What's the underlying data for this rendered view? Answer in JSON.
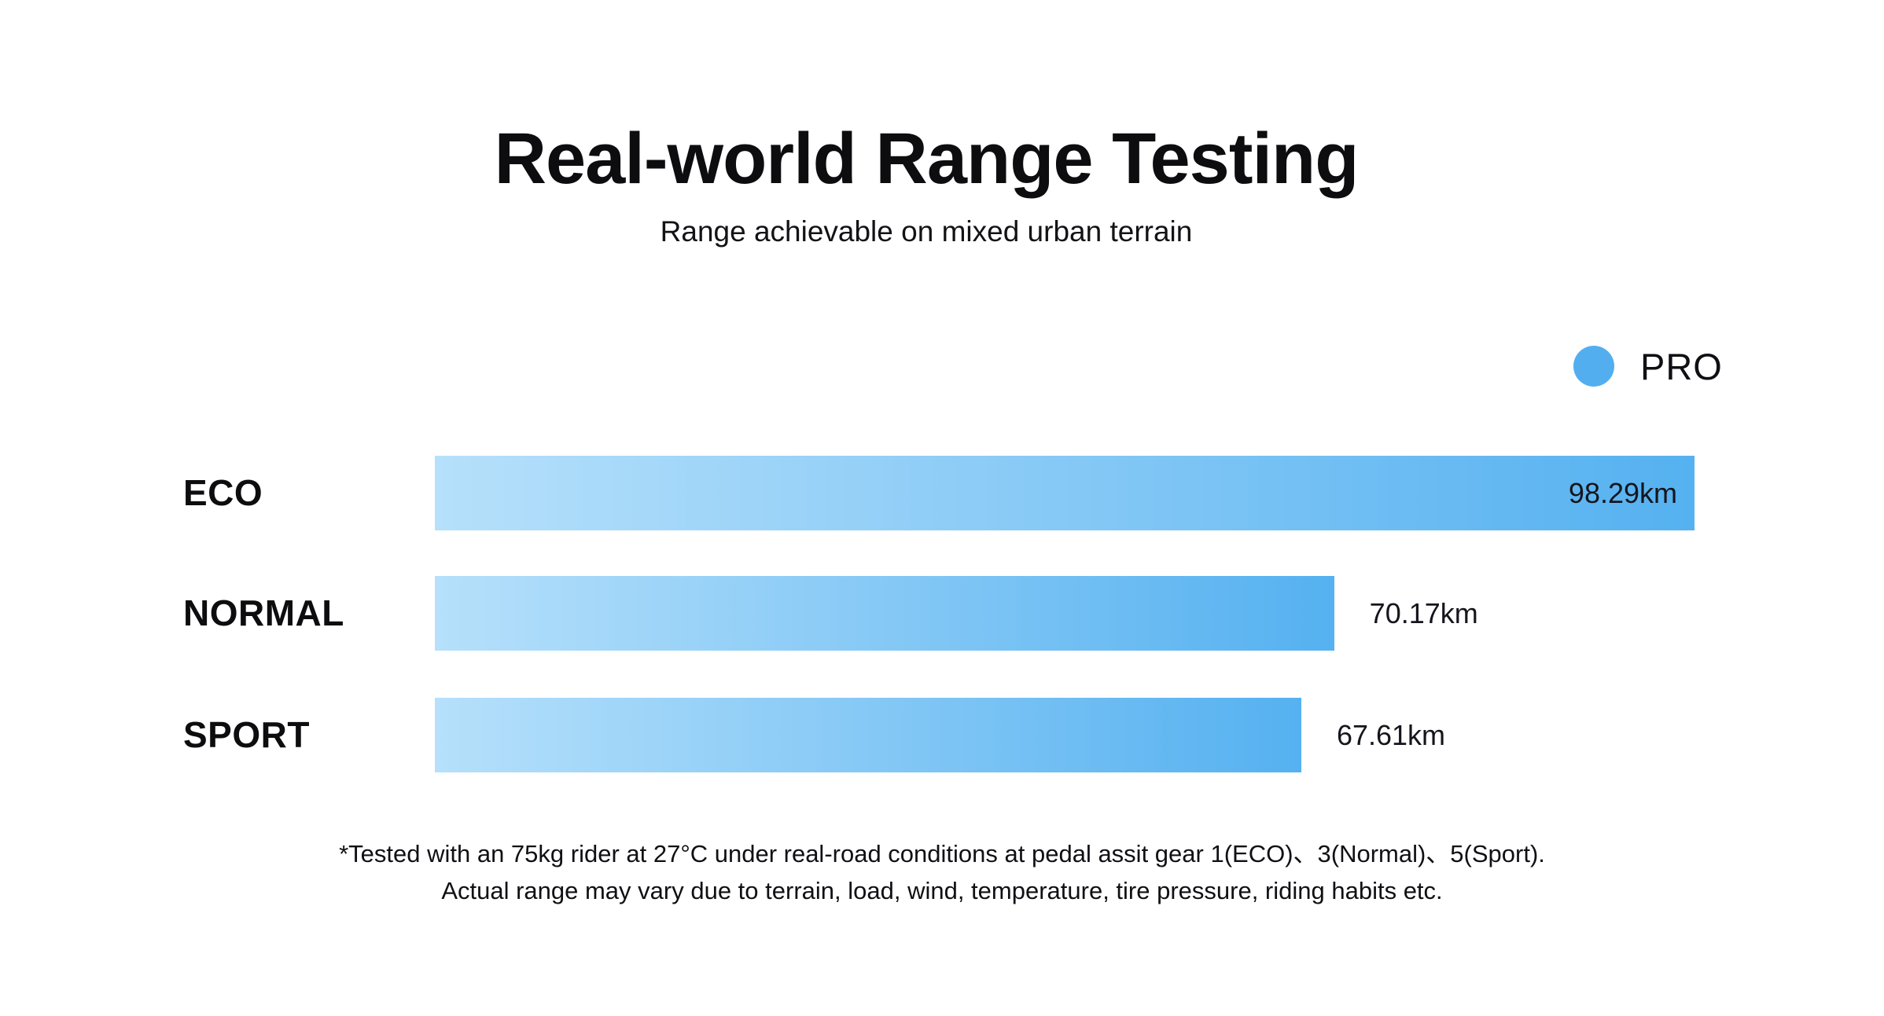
{
  "page": {
    "background": "#ffffff"
  },
  "header": {
    "title": "Real-world Range Testing",
    "subtitle": "Range achievable on mixed urban terrain"
  },
  "legend": {
    "label": "PRO",
    "marker_color": "#53aef0"
  },
  "chart_data": {
    "type": "bar",
    "orientation": "horizontal",
    "title": "Real-world Range Testing",
    "subtitle": "Range achievable on mixed urban terrain",
    "categories": [
      "ECO",
      "NORMAL",
      "SPORT"
    ],
    "series": [
      {
        "name": "PRO",
        "values": [
          98.29,
          70.17,
          67.61
        ]
      }
    ],
    "unit": "km",
    "value_labels": [
      "98.29km",
      "70.17km",
      "67.61km"
    ],
    "xlim": [
      0,
      98.29
    ],
    "grid": false,
    "axes_visible": false,
    "legend_position": "top-right",
    "bar_gradient": {
      "start": "#b6e0fb",
      "end": "#55b1f0"
    },
    "bar_text_color": "#15151d"
  },
  "footnote": {
    "line1": "*Tested with an 75kg rider at 27°C under real-road conditions at pedal assit gear 1(ECO)、3(Normal)、5(Sport).",
    "line2": "Actual range may vary due to terrain, load, wind, temperature, tire pressure, riding habits etc."
  }
}
